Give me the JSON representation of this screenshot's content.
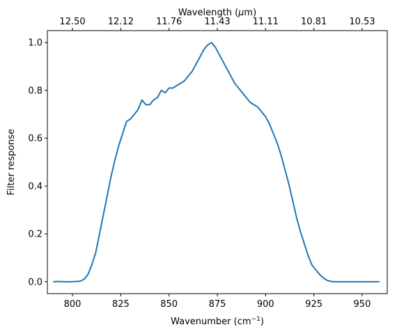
{
  "chart_data": {
    "type": "line",
    "xlabel_main": "Wavenumber (cm",
    "xlabel_sup": "−1",
    "xlabel_close": ")",
    "ylabel": "Filter response",
    "top_xlabel_prefix": "Wavelength (",
    "top_xlabel_mu": "μ",
    "top_xlabel_suffix": "m)",
    "xlim": [
      787,
      963
    ],
    "ylim": [
      -0.05,
      1.05
    ],
    "grid": false,
    "line_color": "#1f77b4",
    "x_ticks": [
      800,
      825,
      850,
      875,
      900,
      925,
      950
    ],
    "x_tick_labels": [
      "800",
      "825",
      "850",
      "875",
      "900",
      "925",
      "950"
    ],
    "y_ticks": [
      0.0,
      0.2,
      0.4,
      0.6,
      0.8,
      1.0
    ],
    "y_tick_labels": [
      "0.0",
      "0.2",
      "0.4",
      "0.6",
      "0.8",
      "1.0"
    ],
    "top_ticks_wavenumber": [
      800,
      825,
      850,
      875,
      900,
      925,
      950
    ],
    "top_tick_labels": [
      "12.50",
      "12.12",
      "11.76",
      "11.43",
      "11.11",
      "10.81",
      "10.53"
    ],
    "series": [
      {
        "x": [
          790,
          793,
          796,
          799,
          802,
          804,
          806,
          808,
          810,
          812,
          814,
          816,
          818,
          820,
          822,
          824,
          826,
          828,
          830,
          832,
          834,
          836,
          838,
          840,
          842,
          844,
          846,
          848,
          850,
          852,
          854,
          856,
          858,
          860,
          862,
          864,
          866,
          868,
          870,
          872,
          874,
          876,
          878,
          880,
          882,
          884,
          886,
          888,
          890,
          892,
          894,
          896,
          898,
          900,
          902,
          904,
          906,
          908,
          910,
          912,
          914,
          916,
          918,
          920,
          922,
          924,
          926,
          928,
          930,
          932,
          934,
          936,
          938,
          940,
          945,
          950,
          955,
          959
        ],
        "y": [
          0.0,
          0.001,
          0.0,
          0.0,
          0.001,
          0.002,
          0.01,
          0.03,
          0.07,
          0.12,
          0.2,
          0.28,
          0.36,
          0.44,
          0.51,
          0.57,
          0.62,
          0.67,
          0.68,
          0.7,
          0.72,
          0.76,
          0.74,
          0.74,
          0.76,
          0.77,
          0.8,
          0.79,
          0.81,
          0.81,
          0.82,
          0.83,
          0.84,
          0.86,
          0.88,
          0.91,
          0.94,
          0.97,
          0.99,
          1.0,
          0.98,
          0.95,
          0.92,
          0.89,
          0.86,
          0.83,
          0.81,
          0.79,
          0.77,
          0.75,
          0.74,
          0.73,
          0.71,
          0.69,
          0.66,
          0.62,
          0.58,
          0.53,
          0.47,
          0.41,
          0.34,
          0.27,
          0.21,
          0.16,
          0.11,
          0.07,
          0.05,
          0.03,
          0.015,
          0.005,
          0.001,
          0.0,
          0.0,
          0.0,
          0.0,
          0.0,
          0.0,
          0.0
        ]
      }
    ]
  }
}
